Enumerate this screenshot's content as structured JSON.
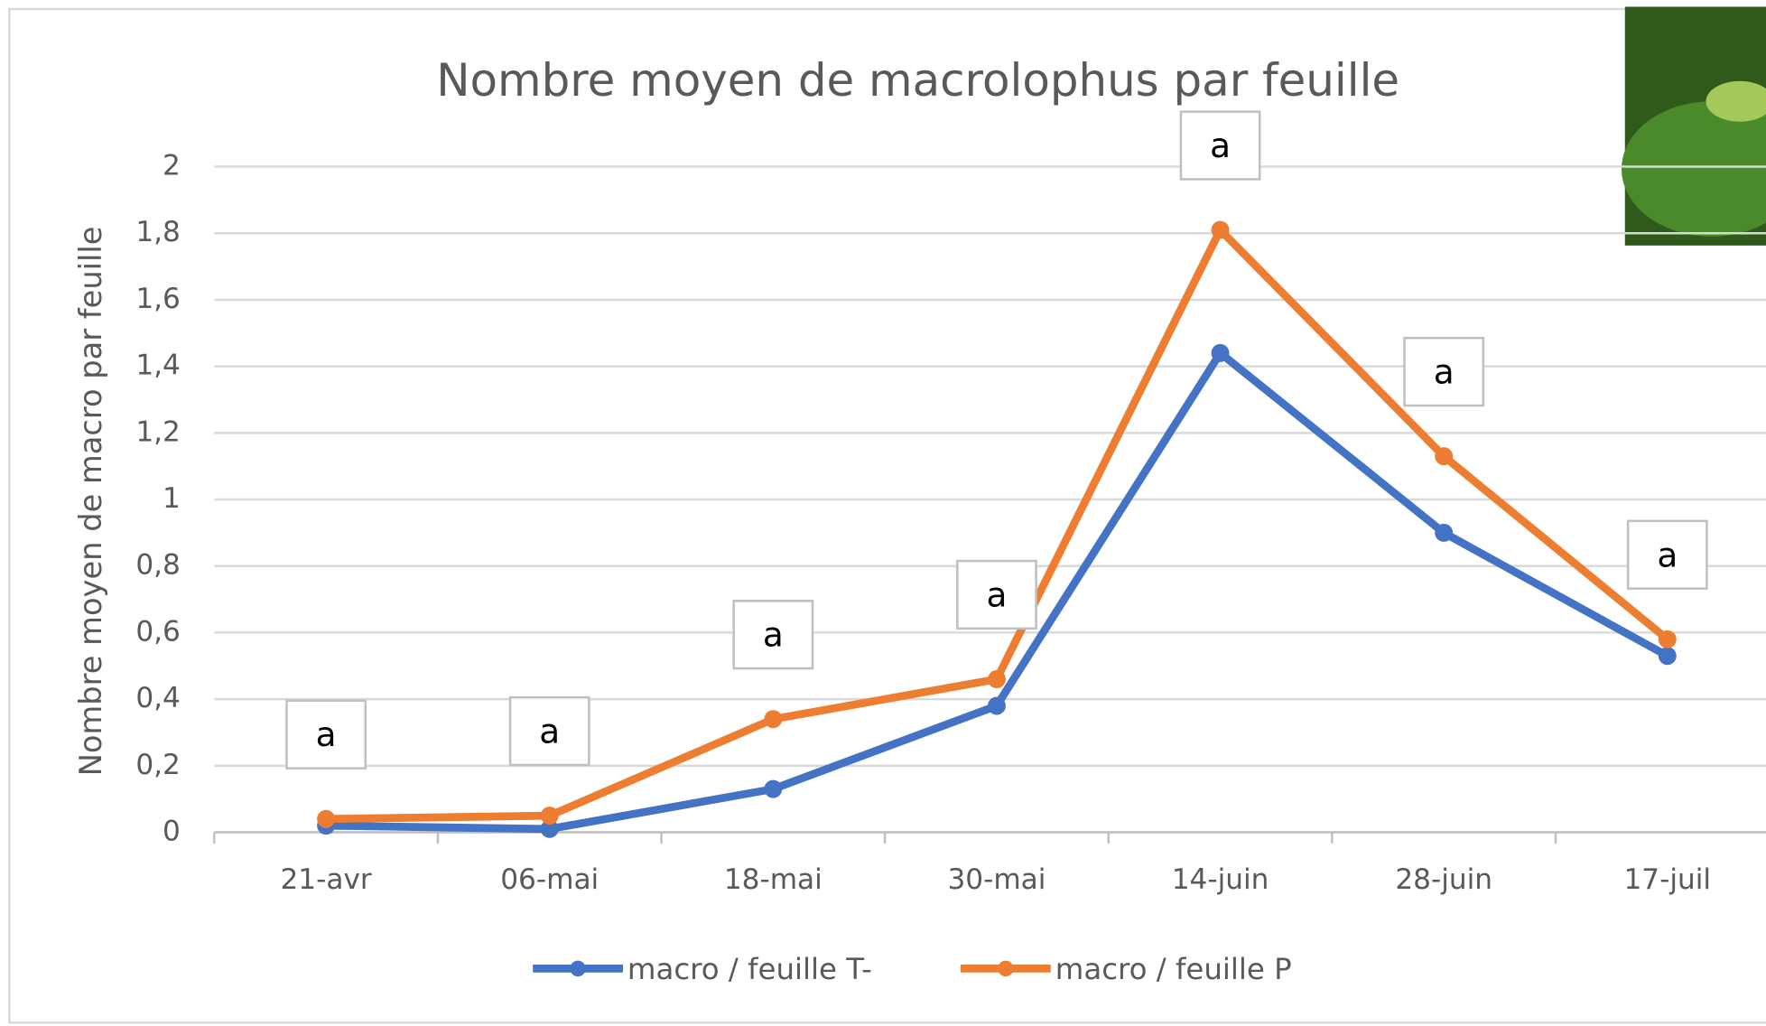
{
  "chart_data": {
    "type": "line",
    "title": "Nombre moyen de macrolophus par feuille",
    "y_label": "Nombre moyen de macro par feuille",
    "categories": [
      "21-avr",
      "06-mai",
      "18-mai",
      "30-mai",
      "14-juin",
      "28-juin",
      "17-juil"
    ],
    "series": [
      {
        "name": "macro / feuille T-",
        "color": "#4472c4",
        "values": [
          0.02,
          0.01,
          0.13,
          0.38,
          1.44,
          0.9,
          0.53
        ]
      },
      {
        "name": "macro / feuille P",
        "color": "#ed7d31",
        "values": [
          0.04,
          0.05,
          0.34,
          0.46,
          1.81,
          1.13,
          0.58
        ]
      }
    ],
    "annotations": [
      "a",
      "a",
      "a",
      "a",
      "a",
      "a",
      "a"
    ],
    "ylim": [
      0,
      2
    ],
    "yticks": [
      0,
      {
        "value": 0.2,
        "label": "0,2"
      },
      {
        "value": 0.4,
        "label": "0,4"
      },
      {
        "value": 0.6,
        "label": "0,6"
      },
      {
        "value": 0.8,
        "label": "0,8"
      },
      1,
      {
        "value": 1.2,
        "label": "1,2"
      },
      {
        "value": 1.4,
        "label": "1,4"
      },
      {
        "value": 1.6,
        "label": "1,6"
      },
      {
        "value": 1.8,
        "label": "1,8"
      },
      2
    ],
    "grid": true,
    "legend": "bottom"
  }
}
